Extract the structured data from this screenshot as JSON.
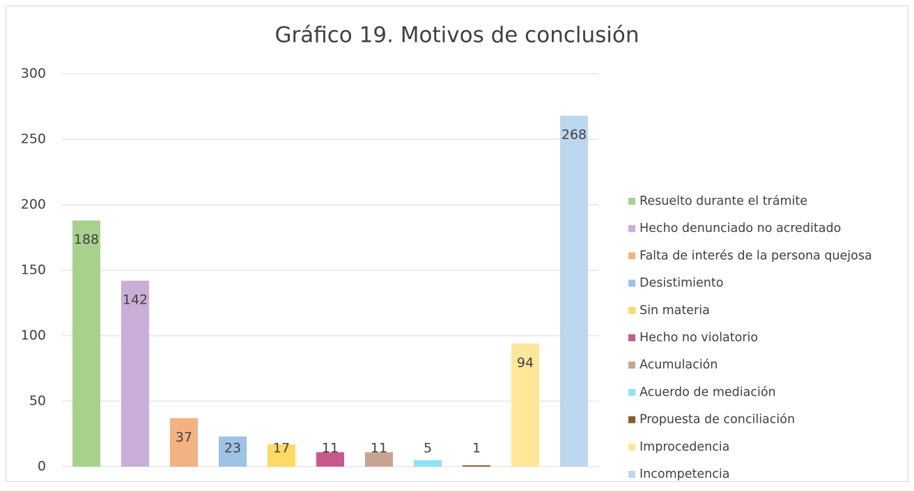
{
  "chart_data": {
    "type": "bar",
    "title": "Gráfico 19. Motivos de conclusión",
    "categories": [
      "Resuelto durante el trámite",
      "Hecho denunciado no acreditado",
      "Falta de interés de la persona quejosa",
      "Desistimiento",
      "Sin materia",
      "Hecho no violatorio",
      "Acumulación",
      "Acuerdo de mediación",
      "Propuesta de conciliación",
      "Improcedencia",
      "Incompetencia"
    ],
    "values": [
      188,
      142,
      37,
      23,
      17,
      11,
      11,
      5,
      1,
      94,
      268
    ],
    "colors": [
      "#a9d18e",
      "#c9aed8",
      "#f4b183",
      "#9dc3e6",
      "#ffd966",
      "#c9598d",
      "#c9a392",
      "#8ee3f2",
      "#8b5a2b",
      "#ffe699",
      "#bdd7ee"
    ],
    "ylim": [
      0,
      300
    ],
    "yticks": [
      0,
      50,
      100,
      150,
      200,
      250,
      300
    ],
    "grid": true,
    "legend": "right"
  }
}
